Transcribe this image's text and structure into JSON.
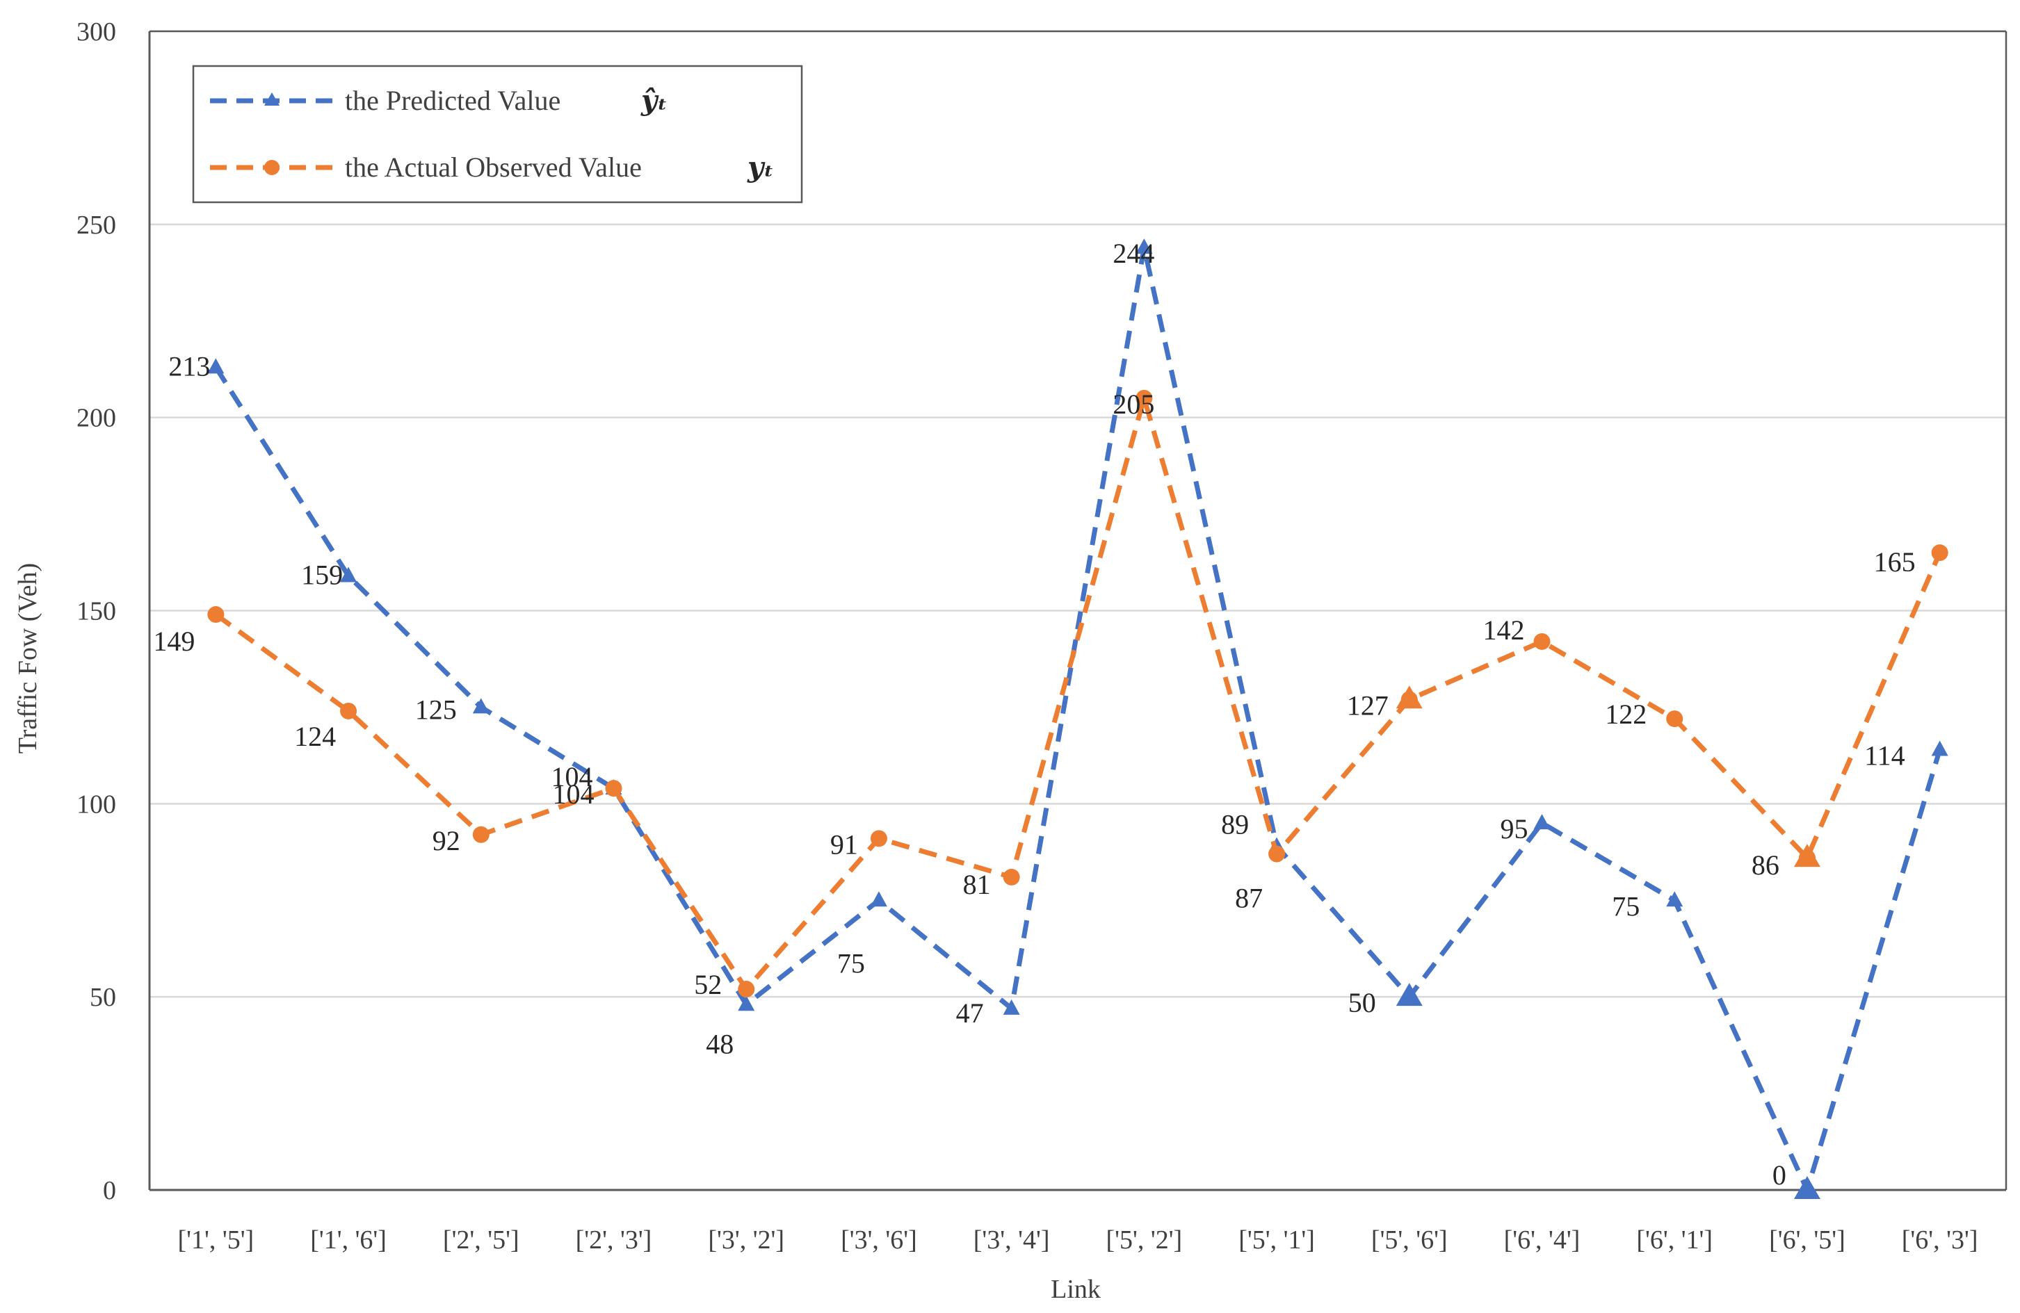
{
  "chart_data": {
    "type": "line",
    "title": "",
    "xlabel": "Link",
    "ylabel": "Traffic Fow (Veh)",
    "ylim": [
      0,
      300
    ],
    "yticks": [
      0,
      50,
      100,
      150,
      200,
      250,
      300
    ],
    "grid": true,
    "legend_position": "top-left",
    "categories": [
      "['1', '5']",
      "['1', '6']",
      "['2', '5']",
      "['2', '3']",
      "['3', '2']",
      "['3', '6']",
      "['3', '4']",
      "['5', '2']",
      "['5', '1']",
      "['5', '6']",
      "['6', '4']",
      "['6', '1']",
      "['6', '5']",
      "['6', '3']"
    ],
    "series": [
      {
        "name": "the Predicted Value",
        "symbol": "ŷₜ",
        "color": "#4472C4",
        "marker": "triangle",
        "values": [
          213,
          159,
          125,
          104,
          48,
          75,
          47,
          244,
          89,
          50,
          95,
          75,
          0,
          114
        ]
      },
      {
        "name": "the Actual Observed Value",
        "symbol": "yₜ",
        "color": "#ED7D31",
        "marker": "circle",
        "values": [
          149,
          124,
          92,
          104,
          52,
          91,
          81,
          205,
          87,
          127,
          142,
          122,
          86,
          165
        ]
      }
    ]
  }
}
